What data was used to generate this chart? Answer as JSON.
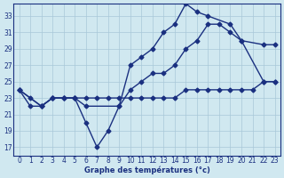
{
  "title": "Graphe des températures (°c)",
  "background_color": "#d0e8f0",
  "line_color": "#1a3080",
  "xlim": [
    -0.5,
    23.5
  ],
  "ylim": [
    16.0,
    34.5
  ],
  "xticks": [
    0,
    1,
    2,
    3,
    4,
    5,
    6,
    7,
    8,
    9,
    10,
    11,
    12,
    13,
    14,
    15,
    16,
    17,
    18,
    19,
    20,
    21,
    22,
    23
  ],
  "yticks": [
    17,
    19,
    21,
    23,
    25,
    27,
    29,
    31,
    33
  ],
  "grid_color": "#a8c8d8",
  "curves": [
    {
      "x": [
        0,
        1,
        2,
        3,
        4,
        5,
        6,
        7,
        8,
        9,
        10,
        11,
        12,
        13,
        14,
        15,
        16,
        17,
        18,
        19,
        20,
        21,
        22,
        23
      ],
      "y": [
        24,
        23,
        22,
        23,
        23,
        23,
        23,
        23,
        23,
        23,
        23,
        23,
        23,
        23,
        23,
        24,
        24,
        24,
        24,
        24,
        24,
        24,
        25,
        25
      ]
    },
    {
      "x": [
        0,
        2,
        3,
        4,
        5,
        6,
        9,
        10,
        11,
        12,
        13,
        14,
        15,
        16,
        17,
        18,
        19,
        20,
        22,
        23
      ],
      "y": [
        24,
        22,
        23,
        23,
        23,
        22,
        22,
        24,
        25,
        26,
        26,
        27,
        29,
        30,
        32,
        32,
        31,
        30,
        29.5,
        29.5
      ]
    },
    {
      "x": [
        0,
        1,
        2,
        3,
        4,
        5,
        6,
        7,
        8,
        9,
        10,
        11,
        12,
        13,
        14,
        15,
        16,
        17,
        19,
        20,
        22,
        23
      ],
      "y": [
        24,
        22,
        22,
        23,
        23,
        23,
        20,
        17,
        19,
        22,
        27,
        28,
        29,
        31,
        32,
        34.5,
        33.5,
        33,
        32,
        30,
        25,
        25
      ]
    }
  ],
  "lw": 1.0,
  "marker": "D",
  "ms": 2.5
}
